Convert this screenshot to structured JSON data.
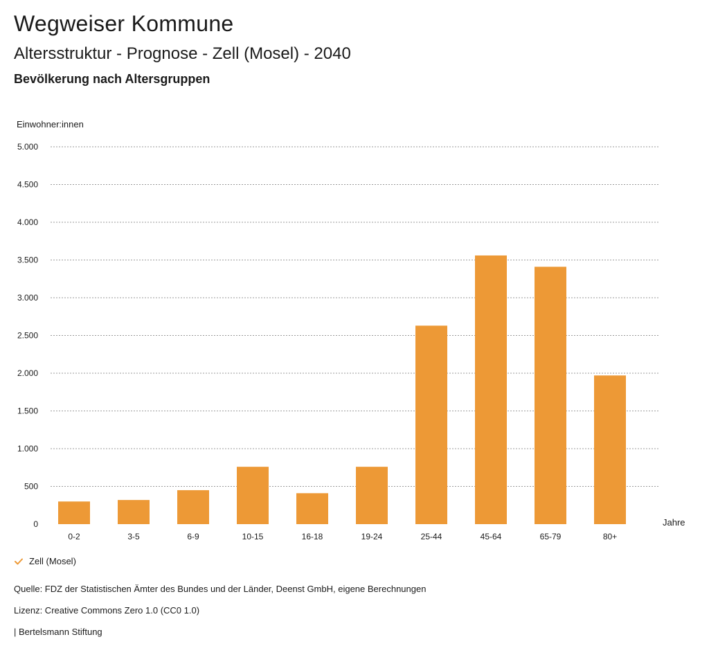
{
  "header": {
    "title": "Wegweiser Kommune",
    "subtitle": "Altersstruktur - Prognose - Zell (Mosel) - 2040",
    "section": "Bevölkerung nach Altersgruppen"
  },
  "colors": {
    "bar": "#ED9936",
    "grid": "#9a9a9a",
    "text": "#1a1a1a"
  },
  "chart_data": {
    "type": "bar",
    "title": "Bevölkerung nach Altersgruppen",
    "ylabel": "Einwohner:innen",
    "xlabel": "Jahre",
    "ylim": [
      0,
      5000
    ],
    "yticks": [
      0,
      500,
      1000,
      1500,
      2000,
      2500,
      3000,
      3500,
      4000,
      4500,
      5000
    ],
    "ytick_labels": [
      "0",
      "500",
      "1.000",
      "1.500",
      "2.000",
      "2.500",
      "3.000",
      "3.500",
      "4.000",
      "4.500",
      "5.000"
    ],
    "categories": [
      "0-2",
      "3-5",
      "6-9",
      "10-15",
      "16-18",
      "19-24",
      "25-44",
      "45-64",
      "65-79",
      "80+"
    ],
    "series": [
      {
        "name": "Zell (Mosel)",
        "values": [
          300,
          320,
          450,
          760,
          410,
          760,
          2630,
          3560,
          3410,
          1970
        ]
      }
    ],
    "grid": true,
    "legend": "bottom-left"
  },
  "legend": {
    "label": "Zell (Mosel)"
  },
  "footer": {
    "source": "Quelle: FDZ der Statistischen Ämter des Bundes und der Länder, Deenst GmbH, eigene Berechnungen",
    "license": "Lizenz: Creative Commons Zero 1.0 (CC0 1.0)",
    "org": "| Bertelsmann Stiftung"
  }
}
